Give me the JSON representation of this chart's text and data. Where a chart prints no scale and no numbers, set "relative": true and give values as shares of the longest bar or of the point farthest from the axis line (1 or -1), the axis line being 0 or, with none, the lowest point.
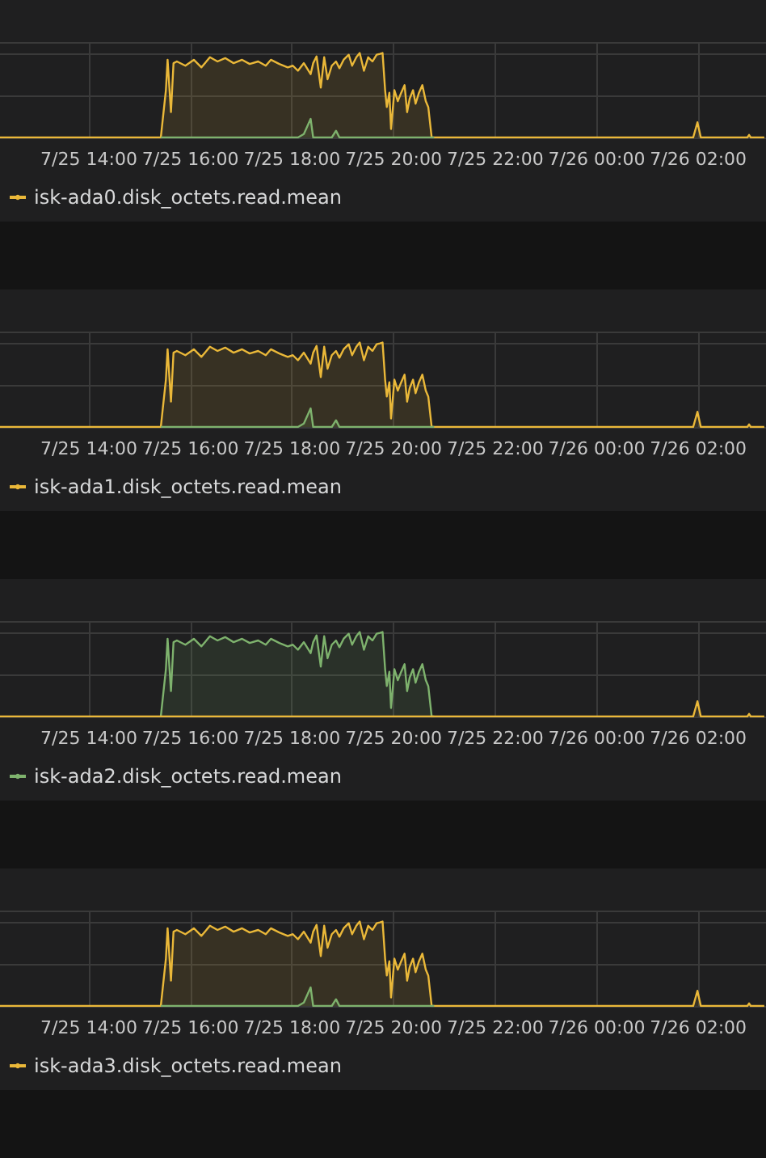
{
  "chart_data": [
    {
      "type": "area",
      "relative": true,
      "grid": true,
      "legend": "bottom left",
      "marker": "none",
      "xlim": [
        "--07-25T12:15",
        "--07-26T03:20"
      ],
      "xticks": [
        {
          "value": "--07-25T14:00",
          "label": "7/25 14:00"
        },
        {
          "value": "--07-25T16:00",
          "label": "7/25 16:00"
        },
        {
          "value": "--07-25T18:00",
          "label": "7/25 18:00"
        },
        {
          "value": "--07-25T20:00",
          "label": "7/25 20:00"
        },
        {
          "value": "--07-25T22:00",
          "label": "7/25 22:00"
        },
        {
          "value": "--07-26T00:00",
          "label": "7/26 00:00"
        },
        {
          "value": "--07-26T02:00",
          "label": "7/26 02:00"
        }
      ],
      "x": [
        "--07-25T12:15",
        "--07-25T14:50",
        "--07-25T14:54",
        "--07-25T15:25",
        "--07-25T15:31",
        "--07-25T15:33",
        "--07-25T15:37",
        "--07-25T15:40",
        "--07-25T15:44",
        "--07-25T15:54",
        "--07-25T16:04",
        "--07-25T16:13",
        "--07-25T16:23",
        "--07-25T16:32",
        "--07-25T16:41",
        "--07-25T16:51",
        "--07-25T17:01",
        "--07-25T17:10",
        "--07-25T17:20",
        "--07-25T17:29",
        "--07-25T17:35",
        "--07-25T17:45",
        "--07-25T17:55",
        "--07-25T18:01",
        "--07-25T18:07",
        "--07-25T18:14",
        "--07-25T18:22",
        "--07-25T18:25",
        "--07-25T18:29",
        "--07-25T18:34",
        "--07-25T18:38",
        "--07-25T18:42",
        "--07-25T18:47",
        "--07-25T18:52",
        "--07-25T18:56",
        "--07-25T19:01",
        "--07-25T19:07",
        "--07-25T19:11",
        "--07-25T19:16",
        "--07-25T19:20",
        "--07-25T19:25",
        "--07-25T19:30",
        "--07-25T19:35",
        "--07-25T19:40",
        "--07-25T19:44",
        "--07-25T19:47",
        "--07-25T19:50",
        "--07-25T19:52",
        "--07-25T19:55",
        "--07-25T19:57",
        "--07-25T20:01",
        "--07-25T20:05",
        "--07-25T20:09",
        "--07-25T20:13",
        "--07-25T20:16",
        "--07-25T20:19",
        "--07-25T20:23",
        "--07-25T20:26",
        "--07-25T20:30",
        "--07-25T20:34",
        "--07-25T20:38",
        "--07-25T20:41",
        "--07-25T20:45",
        "--07-25T20:48",
        "--07-26T01:54",
        "--07-26T01:59",
        "--07-26T02:03",
        "--07-26T02:58",
        "--07-26T03:00",
        "--07-26T03:02",
        "--07-26T03:18"
      ],
      "series": [
        {
          "name": "isk-ada0.disk_octets.read.mean",
          "color": "#eab839",
          "values": [
            0,
            0,
            0,
            0,
            0.56,
            0.92,
            0.3,
            0.88,
            0.9,
            0.85,
            0.92,
            0.83,
            0.95,
            0.9,
            0.94,
            0.88,
            0.92,
            0.87,
            0.9,
            0.85,
            0.92,
            0.87,
            0.83,
            0.85,
            0.79,
            0.88,
            0.75,
            0.88,
            0.96,
            0.59,
            0.95,
            0.69,
            0.85,
            0.9,
            0.82,
            0.92,
            0.98,
            0.85,
            0.95,
            1,
            0.79,
            0.95,
            0.9,
            0.98,
            0.99,
            1,
            0.56,
            0.36,
            0.53,
            0.1,
            0.56,
            0.43,
            0.53,
            0.62,
            0.3,
            0.46,
            0.56,
            0.4,
            0.53,
            0.62,
            0.43,
            0.36,
            0,
            0,
            0,
            0.18,
            0,
            0,
            0.03,
            0,
            0
          ]
        },
        {
          "color": "#7eb26d",
          "values": [
            null,
            null,
            null,
            0,
            0,
            0,
            0,
            0,
            0,
            0,
            0,
            0,
            0,
            0,
            0,
            0,
            0,
            0,
            0,
            0,
            0,
            0,
            0,
            0,
            0,
            0.04,
            0.22,
            0,
            0,
            0,
            0,
            0,
            0,
            0.08,
            0,
            0,
            0,
            0,
            0,
            0,
            0,
            0,
            0,
            0,
            0,
            0,
            0,
            0,
            0,
            0,
            0,
            0,
            0,
            0,
            0,
            0,
            0,
            0,
            0,
            0,
            0,
            0,
            0,
            0,
            null,
            null,
            null,
            null,
            null,
            null,
            null
          ]
        }
      ]
    },
    {
      "type": "area",
      "relative": true,
      "grid": true,
      "legend": "bottom left",
      "marker": "none",
      "xlim": [
        "--07-25T12:15",
        "--07-26T03:20"
      ],
      "xticks": [
        {
          "value": "--07-25T14:00",
          "label": "7/25 14:00"
        },
        {
          "value": "--07-25T16:00",
          "label": "7/25 16:00"
        },
        {
          "value": "--07-25T18:00",
          "label": "7/25 18:00"
        },
        {
          "value": "--07-25T20:00",
          "label": "7/25 20:00"
        },
        {
          "value": "--07-25T22:00",
          "label": "7/25 22:00"
        },
        {
          "value": "--07-26T00:00",
          "label": "7/26 00:00"
        },
        {
          "value": "--07-26T02:00",
          "label": "7/26 02:00"
        }
      ],
      "x": [
        "--07-25T12:15",
        "--07-25T14:50",
        "--07-25T14:54",
        "--07-25T15:25",
        "--07-25T15:31",
        "--07-25T15:33",
        "--07-25T15:37",
        "--07-25T15:40",
        "--07-25T15:44",
        "--07-25T15:54",
        "--07-25T16:04",
        "--07-25T16:13",
        "--07-25T16:23",
        "--07-25T16:32",
        "--07-25T16:41",
        "--07-25T16:51",
        "--07-25T17:01",
        "--07-25T17:10",
        "--07-25T17:20",
        "--07-25T17:29",
        "--07-25T17:35",
        "--07-25T17:45",
        "--07-25T17:55",
        "--07-25T18:01",
        "--07-25T18:07",
        "--07-25T18:14",
        "--07-25T18:22",
        "--07-25T18:25",
        "--07-25T18:29",
        "--07-25T18:34",
        "--07-25T18:38",
        "--07-25T18:42",
        "--07-25T18:47",
        "--07-25T18:52",
        "--07-25T18:56",
        "--07-25T19:01",
        "--07-25T19:07",
        "--07-25T19:11",
        "--07-25T19:16",
        "--07-25T19:20",
        "--07-25T19:25",
        "--07-25T19:30",
        "--07-25T19:35",
        "--07-25T19:40",
        "--07-25T19:44",
        "--07-25T19:47",
        "--07-25T19:50",
        "--07-25T19:52",
        "--07-25T19:55",
        "--07-25T19:57",
        "--07-25T20:01",
        "--07-25T20:05",
        "--07-25T20:09",
        "--07-25T20:13",
        "--07-25T20:16",
        "--07-25T20:19",
        "--07-25T20:23",
        "--07-25T20:26",
        "--07-25T20:30",
        "--07-25T20:34",
        "--07-25T20:38",
        "--07-25T20:41",
        "--07-25T20:45",
        "--07-25T20:48",
        "--07-26T01:54",
        "--07-26T01:59",
        "--07-26T02:03",
        "--07-26T02:58",
        "--07-26T03:00",
        "--07-26T03:02",
        "--07-26T03:18"
      ],
      "series": [
        {
          "name": "isk-ada1.disk_octets.read.mean",
          "color": "#eab839",
          "values": [
            0,
            0,
            0,
            0,
            0.56,
            0.92,
            0.3,
            0.88,
            0.9,
            0.85,
            0.92,
            0.83,
            0.95,
            0.9,
            0.94,
            0.88,
            0.92,
            0.87,
            0.9,
            0.85,
            0.92,
            0.87,
            0.83,
            0.85,
            0.79,
            0.88,
            0.75,
            0.88,
            0.96,
            0.59,
            0.95,
            0.69,
            0.85,
            0.9,
            0.82,
            0.92,
            0.98,
            0.85,
            0.95,
            1,
            0.79,
            0.95,
            0.9,
            0.98,
            0.99,
            1,
            0.56,
            0.36,
            0.53,
            0.1,
            0.56,
            0.43,
            0.53,
            0.62,
            0.3,
            0.46,
            0.56,
            0.4,
            0.53,
            0.62,
            0.43,
            0.36,
            0,
            0,
            0,
            0.18,
            0,
            0,
            0.03,
            0,
            0
          ]
        },
        {
          "color": "#7eb26d",
          "values": [
            null,
            null,
            null,
            0,
            0,
            0,
            0,
            0,
            0,
            0,
            0,
            0,
            0,
            0,
            0,
            0,
            0,
            0,
            0,
            0,
            0,
            0,
            0,
            0,
            0,
            0.04,
            0.22,
            0,
            0,
            0,
            0,
            0,
            0,
            0.08,
            0,
            0,
            0,
            0,
            0,
            0,
            0,
            0,
            0,
            0,
            0,
            0,
            0,
            0,
            0,
            0,
            0,
            0,
            0,
            0,
            0,
            0,
            0,
            0,
            0,
            0,
            0,
            0,
            0,
            0,
            null,
            null,
            null,
            null,
            null,
            null,
            null
          ]
        }
      ]
    },
    {
      "type": "area",
      "relative": true,
      "grid": true,
      "legend": "bottom left",
      "marker": "none",
      "xlim": [
        "--07-25T12:15",
        "--07-26T03:20"
      ],
      "xticks": [
        {
          "value": "--07-25T14:00",
          "label": "7/25 14:00"
        },
        {
          "value": "--07-25T16:00",
          "label": "7/25 16:00"
        },
        {
          "value": "--07-25T18:00",
          "label": "7/25 18:00"
        },
        {
          "value": "--07-25T20:00",
          "label": "7/25 20:00"
        },
        {
          "value": "--07-25T22:00",
          "label": "7/25 22:00"
        },
        {
          "value": "--07-26T00:00",
          "label": "7/26 00:00"
        },
        {
          "value": "--07-26T02:00",
          "label": "7/26 02:00"
        }
      ],
      "x": [
        "--07-25T12:15",
        "--07-25T14:50",
        "--07-25T14:54",
        "--07-25T15:25",
        "--07-25T15:31",
        "--07-25T15:33",
        "--07-25T15:37",
        "--07-25T15:40",
        "--07-25T15:44",
        "--07-25T15:54",
        "--07-25T16:04",
        "--07-25T16:13",
        "--07-25T16:23",
        "--07-25T16:32",
        "--07-25T16:41",
        "--07-25T16:51",
        "--07-25T17:01",
        "--07-25T17:10",
        "--07-25T17:20",
        "--07-25T17:29",
        "--07-25T17:35",
        "--07-25T17:45",
        "--07-25T17:55",
        "--07-25T18:01",
        "--07-25T18:07",
        "--07-25T18:14",
        "--07-25T18:22",
        "--07-25T18:25",
        "--07-25T18:29",
        "--07-25T18:34",
        "--07-25T18:38",
        "--07-25T18:42",
        "--07-25T18:47",
        "--07-25T18:52",
        "--07-25T18:56",
        "--07-25T19:01",
        "--07-25T19:07",
        "--07-25T19:11",
        "--07-25T19:16",
        "--07-25T19:20",
        "--07-25T19:25",
        "--07-25T19:30",
        "--07-25T19:35",
        "--07-25T19:40",
        "--07-25T19:44",
        "--07-25T19:47",
        "--07-25T19:50",
        "--07-25T19:52",
        "--07-25T19:55",
        "--07-25T19:57",
        "--07-25T20:01",
        "--07-25T20:05",
        "--07-25T20:09",
        "--07-25T20:13",
        "--07-25T20:16",
        "--07-25T20:19",
        "--07-25T20:23",
        "--07-25T20:26",
        "--07-25T20:30",
        "--07-25T20:34",
        "--07-25T20:38",
        "--07-25T20:41",
        "--07-25T20:45",
        "--07-25T20:48",
        "--07-26T01:54",
        "--07-26T01:59",
        "--07-26T02:03",
        "--07-26T02:58",
        "--07-26T03:00",
        "--07-26T03:02",
        "--07-26T03:18"
      ],
      "series": [
        {
          "name": "isk-ada2.disk_octets.read.mean",
          "color": "#7eb26d",
          "values": [
            null,
            null,
            null,
            0,
            0.56,
            0.92,
            0.3,
            0.88,
            0.9,
            0.85,
            0.92,
            0.83,
            0.95,
            0.9,
            0.94,
            0.88,
            0.92,
            0.87,
            0.9,
            0.85,
            0.92,
            0.87,
            0.83,
            0.85,
            0.79,
            0.88,
            0.75,
            0.88,
            0.96,
            0.59,
            0.95,
            0.69,
            0.85,
            0.9,
            0.82,
            0.92,
            0.98,
            0.85,
            0.95,
            1,
            0.79,
            0.95,
            0.9,
            0.98,
            0.99,
            1,
            0.56,
            0.36,
            0.53,
            0.1,
            0.56,
            0.43,
            0.53,
            0.62,
            0.3,
            0.46,
            0.56,
            0.4,
            0.53,
            0.62,
            0.43,
            0.36,
            0,
            0,
            null,
            null,
            null,
            null,
            null,
            null,
            null
          ]
        },
        {
          "color": "#eab839",
          "values": [
            0,
            0,
            0,
            0,
            0,
            0,
            0,
            0,
            0,
            0,
            0,
            0,
            0,
            0,
            0,
            0,
            0,
            0,
            0,
            0,
            0,
            0,
            0,
            0,
            0,
            0,
            0,
            0,
            0,
            0,
            0,
            0,
            0,
            0,
            0,
            0,
            0,
            0,
            0,
            0,
            0,
            0,
            0,
            0,
            0,
            0,
            0,
            0,
            0,
            0,
            0,
            0,
            0,
            0,
            0,
            0,
            0,
            0,
            0,
            0,
            0,
            0,
            0,
            0,
            0,
            0.18,
            0,
            0,
            0.03,
            0,
            0
          ]
        }
      ]
    },
    {
      "type": "area",
      "relative": true,
      "grid": true,
      "legend": "bottom left",
      "marker": "none",
      "xlim": [
        "--07-25T12:15",
        "--07-26T03:20"
      ],
      "xticks": [
        {
          "value": "--07-25T14:00",
          "label": "7/25 14:00"
        },
        {
          "value": "--07-25T16:00",
          "label": "7/25 16:00"
        },
        {
          "value": "--07-25T18:00",
          "label": "7/25 18:00"
        },
        {
          "value": "--07-25T20:00",
          "label": "7/25 20:00"
        },
        {
          "value": "--07-25T22:00",
          "label": "7/25 22:00"
        },
        {
          "value": "--07-26T00:00",
          "label": "7/26 00:00"
        },
        {
          "value": "--07-26T02:00",
          "label": "7/26 02:00"
        }
      ],
      "x": [
        "--07-25T12:15",
        "--07-25T14:50",
        "--07-25T14:54",
        "--07-25T15:25",
        "--07-25T15:31",
        "--07-25T15:33",
        "--07-25T15:37",
        "--07-25T15:40",
        "--07-25T15:44",
        "--07-25T15:54",
        "--07-25T16:04",
        "--07-25T16:13",
        "--07-25T16:23",
        "--07-25T16:32",
        "--07-25T16:41",
        "--07-25T16:51",
        "--07-25T17:01",
        "--07-25T17:10",
        "--07-25T17:20",
        "--07-25T17:29",
        "--07-25T17:35",
        "--07-25T17:45",
        "--07-25T17:55",
        "--07-25T18:01",
        "--07-25T18:07",
        "--07-25T18:14",
        "--07-25T18:22",
        "--07-25T18:25",
        "--07-25T18:29",
        "--07-25T18:34",
        "--07-25T18:38",
        "--07-25T18:42",
        "--07-25T18:47",
        "--07-25T18:52",
        "--07-25T18:56",
        "--07-25T19:01",
        "--07-25T19:07",
        "--07-25T19:11",
        "--07-25T19:16",
        "--07-25T19:20",
        "--07-25T19:25",
        "--07-25T19:30",
        "--07-25T19:35",
        "--07-25T19:40",
        "--07-25T19:44",
        "--07-25T19:47",
        "--07-25T19:50",
        "--07-25T19:52",
        "--07-25T19:55",
        "--07-25T19:57",
        "--07-25T20:01",
        "--07-25T20:05",
        "--07-25T20:09",
        "--07-25T20:13",
        "--07-25T20:16",
        "--07-25T20:19",
        "--07-25T20:23",
        "--07-25T20:26",
        "--07-25T20:30",
        "--07-25T20:34",
        "--07-25T20:38",
        "--07-25T20:41",
        "--07-25T20:45",
        "--07-25T20:48",
        "--07-26T01:54",
        "--07-26T01:59",
        "--07-26T02:03",
        "--07-26T02:58",
        "--07-26T03:00",
        "--07-26T03:02",
        "--07-26T03:18"
      ],
      "series": [
        {
          "name": "isk-ada3.disk_octets.read.mean",
          "color": "#eab839",
          "values": [
            0,
            0,
            0,
            0,
            0.56,
            0.92,
            0.3,
            0.88,
            0.9,
            0.85,
            0.92,
            0.83,
            0.95,
            0.9,
            0.94,
            0.88,
            0.92,
            0.87,
            0.9,
            0.85,
            0.92,
            0.87,
            0.83,
            0.85,
            0.79,
            0.88,
            0.75,
            0.88,
            0.96,
            0.59,
            0.95,
            0.69,
            0.85,
            0.9,
            0.82,
            0.92,
            0.98,
            0.85,
            0.95,
            1,
            0.79,
            0.95,
            0.9,
            0.98,
            0.99,
            1,
            0.56,
            0.36,
            0.53,
            0.1,
            0.56,
            0.43,
            0.53,
            0.62,
            0.3,
            0.46,
            0.56,
            0.4,
            0.53,
            0.62,
            0.43,
            0.36,
            0,
            0,
            0,
            0.18,
            0,
            0,
            0.03,
            0,
            0
          ]
        },
        {
          "color": "#7eb26d",
          "values": [
            null,
            null,
            null,
            0,
            0,
            0,
            0,
            0,
            0,
            0,
            0,
            0,
            0,
            0,
            0,
            0,
            0,
            0,
            0,
            0,
            0,
            0,
            0,
            0,
            0,
            0.04,
            0.22,
            0,
            0,
            0,
            0,
            0,
            0,
            0.08,
            0,
            0,
            0,
            0,
            0,
            0,
            0,
            0,
            0,
            0,
            0,
            0,
            0,
            0,
            0,
            0,
            0,
            0,
            0,
            0,
            0,
            0,
            0,
            0,
            0,
            0,
            0,
            0,
            0,
            0,
            null,
            null,
            null,
            null,
            null,
            null,
            null
          ]
        }
      ]
    }
  ]
}
